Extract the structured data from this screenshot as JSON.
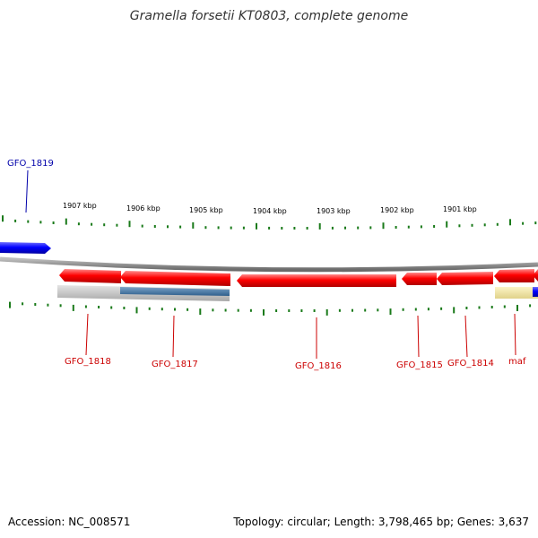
{
  "title": "Gramella forsetii KT0803, complete genome",
  "footer": {
    "accession": "Accession: NC_008571",
    "summary": "Topology: circular; Length: 3,798,465 bp; Genes: 3,637"
  },
  "colors": {
    "gene_red": "#ff0000",
    "gene_blue": "#0000ff",
    "ruler": "#1a7a1a",
    "backbone": "#888888",
    "label_red": "#cc0000",
    "label_blue": "#0000aa",
    "shadow_grey": "#c8c8c8",
    "shadow_steel": "#4a7aa8",
    "shadow_yellow": "#f0e6a0"
  },
  "kbp_labels": [
    "1907 kbp",
    "1906 kbp",
    "1905 kbp",
    "1904 kbp",
    "1903 kbp",
    "1902 kbp",
    "1901 kbp"
  ],
  "genes": [
    {
      "name": "GFO_1819",
      "color": "blue"
    },
    {
      "name": "GFO_1818",
      "color": "red"
    },
    {
      "name": "GFO_1817",
      "color": "red"
    },
    {
      "name": "GFO_1816",
      "color": "red"
    },
    {
      "name": "GFO_1815",
      "color": "red"
    },
    {
      "name": "GFO_1814",
      "color": "red"
    },
    {
      "name": "maf",
      "color": "red"
    }
  ]
}
